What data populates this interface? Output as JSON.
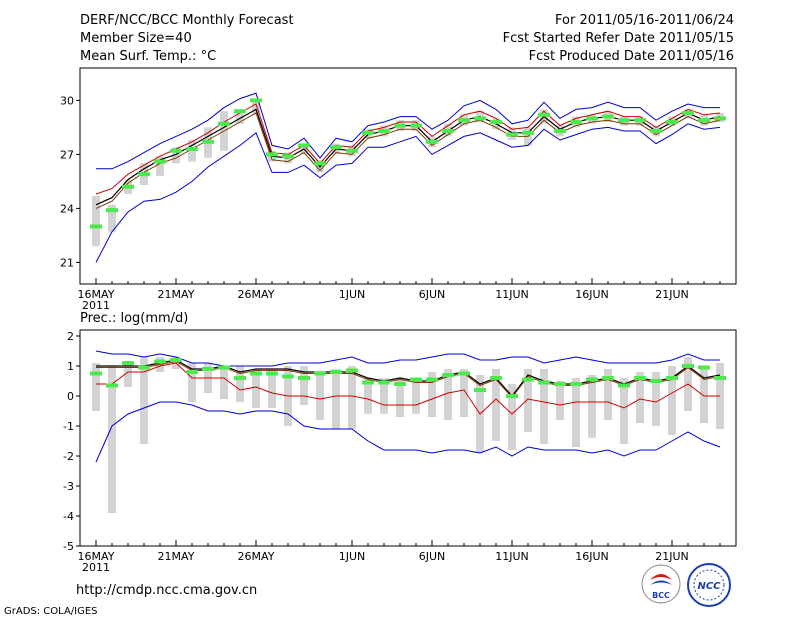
{
  "header": {
    "title": "DERF/NCC/BCC Monthly Forecast",
    "member_size": "Member Size=40",
    "variable": "Mean Surf. Temp.: °C",
    "forecast_period": "For 2011/05/16-2011/06/24",
    "fcst_started": "Fcst Started Refer Date 2011/05/15",
    "fcst_produced": "Fcst Produced Date 2011/05/16"
  },
  "footer": {
    "url": "http://cmdp.ncc.cma.gov.cn",
    "credit": "GrADS: COLA/IGES",
    "logo_bcc": "BCC",
    "logo_ncc": "NCC"
  },
  "colors": {
    "spread": "#0000cc",
    "ensemble_mean": "#000000",
    "gold": "#7a3a00",
    "red_line": "#cc0000",
    "box": "#d3d3d3",
    "marker": "#4ee94e"
  },
  "chart_data": [
    {
      "type": "line",
      "variable": "Mean Surf. Temp.: °C",
      "year_label": "2011",
      "xlim": [
        0,
        39
      ],
      "ylim": [
        19.8,
        31.8
      ],
      "yticks": [
        21,
        24,
        27,
        30
      ],
      "ytick_labels": [
        "21",
        "24",
        "27",
        "30"
      ],
      "xtick_labels": [
        {
          "day": 0,
          "label": "16MAY"
        },
        {
          "day": 5,
          "label": "21MAY"
        },
        {
          "day": 10,
          "label": "26MAY"
        },
        {
          "day": 16,
          "label": "1JUN"
        },
        {
          "day": 21,
          "label": "6JUN"
        },
        {
          "day": 26,
          "label": "11JUN"
        },
        {
          "day": 31,
          "label": "16JUN"
        },
        {
          "day": 36,
          "label": "21JUN"
        }
      ],
      "series": [
        {
          "name": "max",
          "color": "#0000cc",
          "values": [
            26.2,
            26.2,
            26.6,
            27.1,
            27.6,
            28.0,
            28.4,
            28.9,
            29.6,
            30.1,
            30.4,
            27.5,
            27.3,
            27.9,
            26.8,
            27.9,
            27.7,
            28.6,
            28.8,
            29.1,
            29.1,
            28.4,
            28.9,
            29.7,
            30.0,
            29.5,
            28.7,
            28.9,
            29.9,
            29.0,
            29.5,
            29.6,
            29.9,
            29.6,
            29.6,
            28.9,
            29.4,
            29.8,
            29.6,
            29.6
          ]
        },
        {
          "name": "upper",
          "color": "#cc0000",
          "values": [
            24.8,
            25.1,
            25.9,
            26.4,
            26.9,
            27.3,
            27.7,
            28.2,
            28.8,
            29.3,
            29.8,
            27.1,
            27.0,
            27.5,
            26.5,
            27.5,
            27.4,
            28.3,
            28.5,
            28.8,
            28.8,
            28.0,
            28.6,
            29.2,
            29.4,
            29.0,
            28.4,
            28.5,
            29.4,
            28.6,
            29.0,
            29.2,
            29.4,
            29.1,
            29.1,
            28.5,
            29.0,
            29.5,
            29.2,
            29.3
          ]
        },
        {
          "name": "mean",
          "color": "#000000",
          "values": [
            24.2,
            24.6,
            25.6,
            26.2,
            26.7,
            27.0,
            27.5,
            28.0,
            28.5,
            29.0,
            29.5,
            26.9,
            26.8,
            27.3,
            26.3,
            27.3,
            27.2,
            28.1,
            28.3,
            28.6,
            28.6,
            27.7,
            28.3,
            28.9,
            29.1,
            28.7,
            28.2,
            28.2,
            29.1,
            28.4,
            28.8,
            29.0,
            29.1,
            28.9,
            28.9,
            28.3,
            28.8,
            29.3,
            28.9,
            29.1
          ]
        },
        {
          "name": "gold",
          "color": "#7a3a00",
          "values": [
            24.0,
            24.4,
            25.4,
            26.0,
            26.5,
            26.8,
            27.3,
            27.8,
            28.3,
            28.8,
            29.3,
            26.7,
            26.6,
            27.1,
            26.1,
            27.1,
            27.0,
            27.9,
            28.1,
            28.4,
            28.4,
            27.5,
            28.1,
            28.7,
            28.9,
            28.5,
            28.0,
            28.0,
            28.9,
            28.2,
            28.6,
            28.8,
            28.9,
            28.7,
            28.7,
            28.1,
            28.6,
            29.1,
            28.7,
            28.9
          ]
        },
        {
          "name": "lower",
          "color": "#0000cc",
          "values": [
            21.0,
            22.7,
            23.8,
            24.4,
            24.5,
            24.9,
            25.5,
            26.3,
            26.9,
            27.5,
            28.2,
            26.0,
            26.0,
            26.4,
            25.7,
            26.4,
            26.5,
            27.4,
            27.4,
            27.7,
            28.0,
            27.0,
            27.5,
            28.0,
            28.2,
            27.8,
            27.4,
            27.5,
            28.4,
            27.8,
            28.1,
            28.4,
            28.5,
            28.3,
            28.3,
            27.6,
            28.1,
            28.7,
            28.4,
            28.5
          ]
        }
      ],
      "boxes": {
        "low": [
          21.9,
          22.7,
          24.8,
          25.3,
          25.8,
          26.5,
          26.6,
          26.8,
          27.2,
          28.7,
          29.2,
          26.6,
          26.5,
          27.0,
          26.0,
          27.0,
          26.9,
          27.9,
          28.0,
          28.3,
          28.3,
          27.4,
          28.0,
          28.6,
          28.8,
          28.4,
          27.8,
          27.5,
          28.7,
          28.0,
          28.5,
          28.7,
          28.8,
          28.6,
          28.6,
          28.0,
          28.6,
          29.0,
          28.6,
          28.8
        ],
        "high": [
          24.7,
          24.2,
          25.6,
          26.5,
          26.9,
          27.4,
          27.8,
          28.5,
          29.4,
          29.3,
          29.9,
          27.2,
          27.1,
          27.6,
          26.7,
          27.6,
          27.5,
          28.4,
          28.6,
          28.9,
          28.9,
          28.0,
          28.7,
          29.2,
          29.4,
          29.0,
          28.5,
          28.5,
          29.5,
          28.6,
          29.1,
          29.2,
          29.4,
          29.1,
          29.1,
          28.6,
          29.1,
          29.5,
          29.2,
          29.3
        ]
      },
      "markers": [
        23.0,
        23.9,
        25.2,
        25.9,
        26.6,
        27.2,
        27.3,
        27.7,
        28.7,
        29.4,
        30.0,
        27.0,
        26.9,
        27.5,
        26.5,
        27.4,
        27.2,
        28.2,
        28.3,
        28.6,
        28.6,
        27.7,
        28.3,
        28.9,
        29.0,
        28.8,
        28.1,
        28.2,
        29.2,
        28.3,
        28.8,
        29.0,
        29.1,
        28.9,
        28.9,
        28.3,
        28.8,
        29.3,
        28.9,
        29.0
      ]
    },
    {
      "type": "line",
      "variable": "Prec.: log(mm/d)",
      "year_label": "2011",
      "xlim": [
        0,
        39
      ],
      "ylim": [
        -5,
        2.2
      ],
      "yticks": [
        -5,
        -4,
        -3,
        -2,
        -1,
        0,
        1,
        2
      ],
      "ytick_labels": [
        "-5",
        "-4",
        "-3",
        "-2",
        "-1",
        "0",
        "1",
        "2"
      ],
      "xtick_labels": [
        {
          "day": 0,
          "label": "16MAY"
        },
        {
          "day": 5,
          "label": "21MAY"
        },
        {
          "day": 10,
          "label": "26MAY"
        },
        {
          "day": 16,
          "label": "1JUN"
        },
        {
          "day": 21,
          "label": "6JUN"
        },
        {
          "day": 26,
          "label": "11JUN"
        },
        {
          "day": 31,
          "label": "16JUN"
        },
        {
          "day": 36,
          "label": "21JUN"
        }
      ],
      "series": [
        {
          "name": "max",
          "color": "#0000cc",
          "values": [
            1.5,
            1.4,
            1.4,
            1.3,
            1.4,
            1.3,
            1.1,
            1.1,
            1.0,
            1.0,
            1.0,
            1.0,
            1.1,
            1.1,
            1.1,
            1.2,
            1.3,
            1.1,
            1.1,
            1.2,
            1.2,
            1.3,
            1.4,
            1.4,
            1.2,
            1.2,
            1.3,
            1.3,
            1.1,
            1.2,
            1.3,
            1.2,
            1.1,
            1.1,
            1.1,
            1.1,
            1.2,
            1.4,
            1.2,
            1.2
          ]
        },
        {
          "name": "mean",
          "color": "#000000",
          "values": [
            1.0,
            1.0,
            1.0,
            1.0,
            1.1,
            1.2,
            0.9,
            0.9,
            1.0,
            0.8,
            0.9,
            0.9,
            0.9,
            0.8,
            0.8,
            0.8,
            0.8,
            0.6,
            0.5,
            0.6,
            0.5,
            0.5,
            0.7,
            0.8,
            0.4,
            0.6,
            0.0,
            0.7,
            0.5,
            0.4,
            0.4,
            0.5,
            0.6,
            0.4,
            0.6,
            0.5,
            0.6,
            1.0,
            0.6,
            0.7
          ]
        },
        {
          "name": "gold",
          "color": "#7a3a00",
          "values": [
            0.95,
            0.95,
            0.95,
            0.95,
            1.05,
            1.15,
            0.85,
            0.85,
            0.95,
            0.75,
            0.85,
            0.85,
            0.85,
            0.75,
            0.75,
            0.75,
            0.75,
            0.55,
            0.45,
            0.55,
            0.45,
            0.45,
            0.65,
            0.75,
            0.35,
            0.55,
            -0.05,
            0.65,
            0.45,
            0.35,
            0.35,
            0.45,
            0.55,
            0.35,
            0.55,
            0.45,
            0.55,
            0.95,
            0.55,
            0.65
          ]
        },
        {
          "name": "lower_red",
          "color": "#cc0000",
          "values": [
            0.4,
            0.4,
            0.8,
            0.8,
            1.0,
            1.1,
            0.6,
            0.6,
            0.6,
            0.2,
            0.3,
            0.1,
            0.0,
            0.0,
            -0.1,
            0.0,
            0.0,
            -0.1,
            -0.3,
            -0.3,
            -0.3,
            -0.1,
            0.1,
            0.2,
            -0.6,
            -0.1,
            -0.6,
            -0.1,
            -0.2,
            -0.3,
            -0.2,
            -0.2,
            -0.2,
            -0.4,
            -0.1,
            -0.2,
            0.1,
            0.4,
            0.0,
            0.0
          ]
        },
        {
          "name": "min",
          "color": "#0000cc",
          "values": [
            -2.2,
            -1.0,
            -0.6,
            -0.4,
            -0.2,
            -0.2,
            -0.3,
            -0.5,
            -0.5,
            -0.6,
            -0.5,
            -0.5,
            -0.6,
            -1.0,
            -1.1,
            -1.1,
            -1.1,
            -1.5,
            -1.8,
            -1.8,
            -1.8,
            -1.9,
            -1.8,
            -1.8,
            -1.9,
            -1.7,
            -2.0,
            -1.7,
            -1.8,
            -1.8,
            -1.8,
            -1.9,
            -1.8,
            -2.0,
            -1.8,
            -1.8,
            -1.5,
            -1.2,
            -1.5,
            -1.7
          ]
        }
      ],
      "boxes": {
        "low": [
          -0.5,
          -3.9,
          0.3,
          -1.6,
          0.8,
          0.9,
          -0.2,
          0.1,
          -0.1,
          -0.2,
          -0.4,
          -0.4,
          -1.0,
          -0.3,
          -0.8,
          -1.1,
          -1.1,
          -0.6,
          -0.6,
          -0.7,
          -0.6,
          -0.7,
          -0.8,
          -0.7,
          -1.9,
          -1.5,
          -1.8,
          -1.2,
          -1.6,
          -0.8,
          -1.7,
          -1.4,
          -0.8,
          -1.6,
          -0.9,
          -1.0,
          -1.3,
          -0.5,
          -0.9,
          -1.1
        ],
        "high": [
          1.1,
          1.0,
          1.1,
          1.3,
          1.3,
          1.3,
          1.1,
          1.1,
          1.0,
          1.0,
          0.9,
          0.9,
          1.0,
          1.0,
          0.8,
          0.9,
          1.0,
          0.6,
          0.6,
          0.6,
          0.6,
          0.8,
          0.9,
          0.9,
          0.7,
          0.9,
          0.4,
          0.9,
          0.9,
          0.5,
          0.6,
          0.7,
          0.9,
          0.6,
          0.8,
          0.8,
          1.0,
          1.3,
          0.9,
          1.1
        ]
      },
      "markers": [
        0.75,
        0.35,
        1.1,
        0.95,
        1.15,
        1.2,
        0.8,
        0.9,
        0.95,
        0.6,
        0.75,
        0.75,
        0.65,
        0.6,
        0.75,
        0.8,
        0.85,
        0.45,
        0.45,
        0.4,
        0.55,
        0.55,
        0.7,
        0.75,
        0.2,
        0.6,
        0.0,
        0.55,
        0.45,
        0.4,
        0.4,
        0.55,
        0.6,
        0.35,
        0.6,
        0.5,
        0.6,
        1.0,
        0.95,
        0.6
      ]
    }
  ],
  "temp_axis_label": "",
  "precip_label": "Prec.: log(mm/d)"
}
